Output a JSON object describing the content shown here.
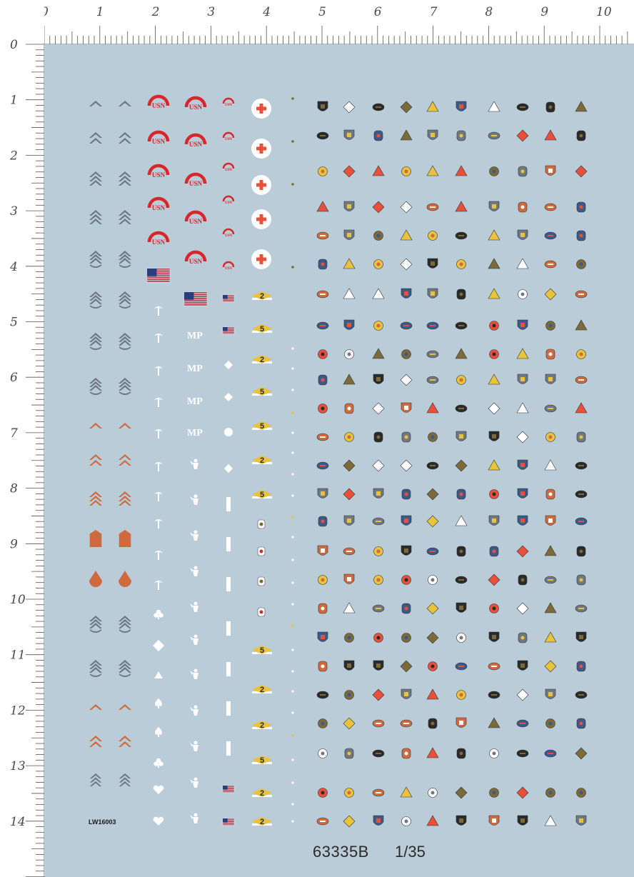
{
  "ruler": {
    "unit": "CM",
    "top_numbers": [
      "0",
      "1",
      "2",
      "3",
      "4",
      "5",
      "6",
      "7",
      "8",
      "9",
      "10"
    ],
    "left_numbers": [
      "0",
      "1",
      "2",
      "3",
      "4",
      "5",
      "6",
      "7",
      "8",
      "9",
      "10",
      "11",
      "12",
      "13",
      "14"
    ]
  },
  "sheet": {
    "background": "#b9ccd8",
    "code_small": "LW16003",
    "product_code": "63335B",
    "scale": "1/35",
    "mp_label": "MP",
    "usn_label": "USN",
    "markers": {
      "m2": "2",
      "m5": "5"
    }
  },
  "colors": {
    "chevron_gray": "#6f7780",
    "chevron_orange": "#cf6a3e",
    "usn_red": "#d8262b",
    "cross_red": "#e8503a",
    "white": "#ffffff",
    "yellow": "#e9c33b",
    "dark": "#2a2a2a",
    "olive": "#7b6b3a",
    "flag_red": "#c8202c",
    "flag_blue": "#2b3d7a"
  }
}
